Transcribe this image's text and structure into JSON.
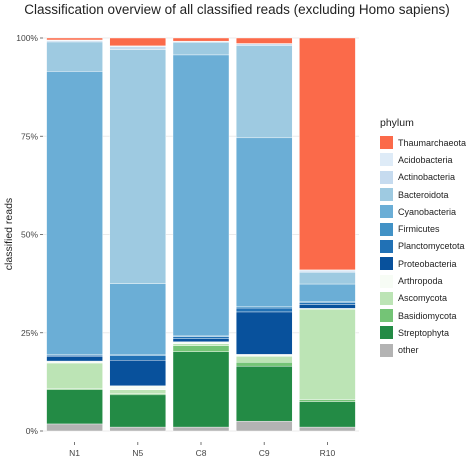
{
  "chart_data": {
    "type": "bar",
    "stacked": true,
    "title": "Classification overview of all classified reads (excluding Homo sapiens)",
    "xlabel": "",
    "ylabel": "classified reads",
    "ylim": [
      0,
      1
    ],
    "y_ticks": [
      {
        "value": 0,
        "label": "0%"
      },
      {
        "value": 0.25,
        "label": "25%"
      },
      {
        "value": 0.5,
        "label": "50%"
      },
      {
        "value": 0.75,
        "label": "75%"
      },
      {
        "value": 1,
        "label": "100%"
      }
    ],
    "grid": true,
    "legend_title": "phylum",
    "legend_position": "right",
    "categories": [
      "N1",
      "N5",
      "C8",
      "C9",
      "R10"
    ],
    "series": [
      {
        "name": "other",
        "color": "#b3b3b3",
        "values": [
          0.018,
          0.01,
          0.01,
          0.025,
          0.01
        ]
      },
      {
        "name": "Streptophyta",
        "color": "#238b45",
        "values": [
          0.087,
          0.082,
          0.192,
          0.14,
          0.065
        ]
      },
      {
        "name": "Basidiomycota",
        "color": "#74c476",
        "values": [
          0.003,
          0.003,
          0.015,
          0.01,
          0.005
        ]
      },
      {
        "name": "Ascomycota",
        "color": "#bce4b5",
        "values": [
          0.065,
          0.01,
          0.005,
          0.015,
          0.23
        ]
      },
      {
        "name": "Arthropoda",
        "color": "#f7fcf5",
        "values": [
          0.005,
          0.01,
          0.005,
          0.005,
          0.002
        ]
      },
      {
        "name": "Proteobacteria",
        "color": "#08519c",
        "values": [
          0.012,
          0.065,
          0.008,
          0.108,
          0.01
        ]
      },
      {
        "name": "Planctomycetota",
        "color": "#2171b5",
        "values": [
          0.003,
          0.012,
          0.005,
          0.01,
          0.005
        ]
      },
      {
        "name": "Firmicutes",
        "color": "#4292c6",
        "values": [
          0.002,
          0.003,
          0.002,
          0.003,
          0.002
        ]
      },
      {
        "name": "Cyanobacteria",
        "color": "#6baed6",
        "values": [
          0.72,
          0.18,
          0.715,
          0.43,
          0.045
        ]
      },
      {
        "name": "Bacteroidota",
        "color": "#9ecae1",
        "values": [
          0.075,
          0.595,
          0.032,
          0.235,
          0.03
        ]
      },
      {
        "name": "Actinobacteria",
        "color": "#c6dbef",
        "values": [
          0.003,
          0.008,
          0.002,
          0.004,
          0.003
        ]
      },
      {
        "name": "Acidobacteria",
        "color": "#deebf7",
        "values": [
          0.002,
          0.002,
          0.001,
          0.001,
          0.003
        ]
      },
      {
        "name": "Thaumarchaeota",
        "color": "#fb6a4a",
        "values": [
          0.005,
          0.02,
          0.008,
          0.014,
          0.59
        ]
      }
    ],
    "legend_order": [
      "Thaumarchaeota",
      "Acidobacteria",
      "Actinobacteria",
      "Bacteroidota",
      "Cyanobacteria",
      "Firmicutes",
      "Planctomycetota",
      "Proteobacteria",
      "Arthropoda",
      "Ascomycota",
      "Basidiomycota",
      "Streptophyta",
      "other"
    ]
  }
}
